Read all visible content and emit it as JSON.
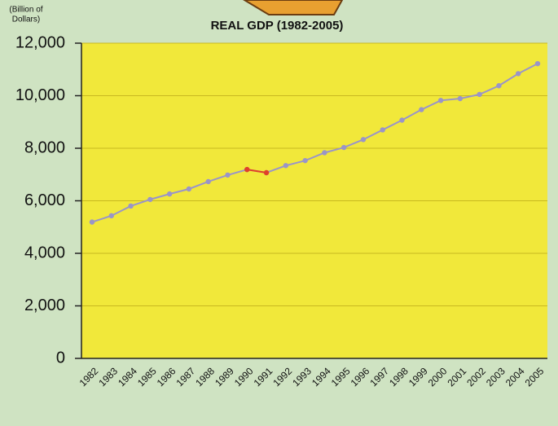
{
  "chart_data": {
    "type": "line",
    "title": "REAL GDP (1982-2005)",
    "y_label": [
      "(Billion of",
      "Dollars)"
    ],
    "categories": [
      "1982",
      "1983",
      "1984",
      "1985",
      "1986",
      "1987",
      "1988",
      "1989",
      "1990",
      "1991",
      "1992",
      "1993",
      "1994",
      "1995",
      "1996",
      "1997",
      "1998",
      "1999",
      "2000",
      "2001",
      "2002",
      "2003",
      "2004",
      "2005"
    ],
    "series": [
      {
        "color": "#9a95c8",
        "values": [
          5190,
          5430,
          5800,
          6050,
          6260,
          6450,
          6730,
          6980,
          7190,
          7070,
          7340,
          7530,
          7830,
          8030,
          8330,
          8700,
          9070,
          9470,
          9820,
          9890,
          10050,
          10380,
          10840,
          11220
        ]
      },
      {
        "color": "#e0402a",
        "values": [
          null,
          null,
          null,
          null,
          null,
          null,
          null,
          null,
          7190,
          7070,
          null,
          null,
          null,
          null,
          null,
          null,
          null,
          null,
          null,
          null,
          null,
          null,
          null,
          null
        ]
      }
    ],
    "ylim": [
      0,
      12000
    ],
    "yticks": [
      0,
      {
        "value": 2000,
        "label": "2,000"
      },
      {
        "value": 4000,
        "label": "4,000"
      },
      {
        "value": 6000,
        "label": "6,000"
      },
      {
        "value": 8000,
        "label": "8,000"
      },
      {
        "value": 10000,
        "label": "10,000"
      },
      {
        "value": 12000,
        "label": "12,000"
      }
    ],
    "grid": true,
    "plot_color": "#f1e83a"
  }
}
